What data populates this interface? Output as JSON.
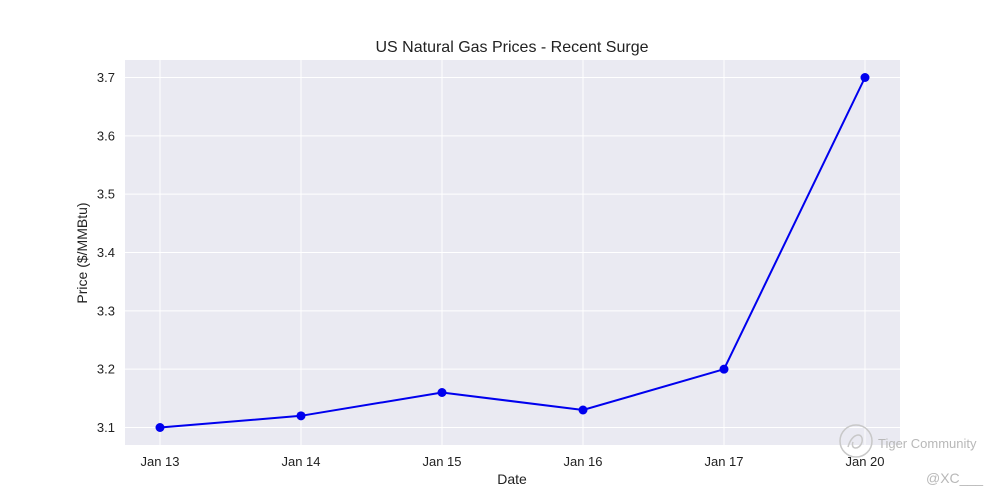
{
  "chart_data": {
    "type": "line",
    "title": "US Natural Gas Prices - Recent Surge",
    "xlabel": "Date",
    "ylabel": "Price ($/MMBtu)",
    "categories": [
      "Jan 13",
      "Jan 14",
      "Jan 15",
      "Jan 16",
      "Jan 17",
      "Jan 20"
    ],
    "values": [
      3.1,
      3.12,
      3.16,
      3.13,
      3.2,
      3.7
    ],
    "yticks": [
      "3.1",
      "3.2",
      "3.3",
      "3.4",
      "3.5",
      "3.6",
      "3.7"
    ],
    "ylim": [
      3.07,
      3.73
    ],
    "grid": true,
    "line_color": "#0000ee",
    "marker_color": "#0000ee",
    "background_color": "#eaeaf2",
    "grid_color": "#ffffff"
  },
  "watermark": {
    "brand": "Tiger Community",
    "handle": "@XC___"
  }
}
